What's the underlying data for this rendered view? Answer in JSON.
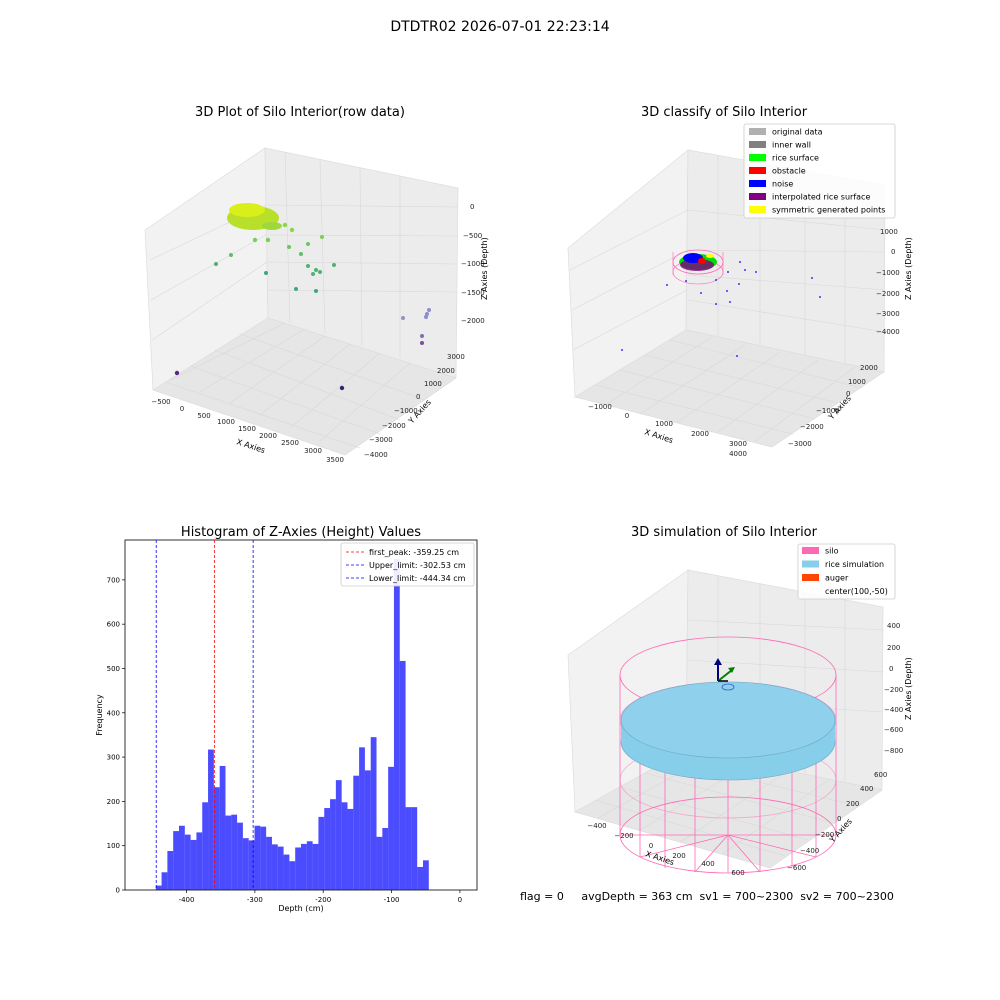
{
  "figure": {
    "suptitle": "DTDTR02 2026-07-01 22:23:14",
    "status_line": "flag = 0     avgDepth = 363 cm  sv1 = 700~2300  sv2 = 700~2300"
  },
  "panels": {
    "raw": {
      "title": "3D Plot of Silo Interior(row data)",
      "xlabel": "X Axies",
      "ylabel": "Y Axies",
      "zlabel": "Z Axies (Depth)",
      "xticks": [
        "−500",
        "0",
        "500",
        "1000",
        "1500",
        "2000",
        "2500",
        "3000",
        "3500"
      ],
      "yticks": [
        "−4000",
        "−3000",
        "−2000",
        "−1000",
        "0",
        "1000",
        "2000",
        "3000"
      ],
      "zticks": [
        "0",
        "−500",
        "−1000",
        "−1500",
        "−2000"
      ]
    },
    "classify": {
      "title": "3D classify of Silo Interior",
      "xlabel": "X Axies",
      "ylabel": "Y Axies",
      "zlabel": "Z Axies (Depth)",
      "xticks": [
        "−1000",
        "0",
        "1000",
        "2000",
        "3000",
        "4000"
      ],
      "yticks": [
        "−3000",
        "−2000",
        "−1000",
        "0",
        "1000",
        "2000"
      ],
      "zticks": [
        "1000",
        "0",
        "−1000",
        "−2000",
        "−3000",
        "−4000"
      ],
      "legend": [
        {
          "label": "original data",
          "color": "#b0b0b0"
        },
        {
          "label": "inner wall",
          "color": "#808080"
        },
        {
          "label": "rice surface",
          "color": "#00ff00"
        },
        {
          "label": "obstacle",
          "color": "#ff0000"
        },
        {
          "label": "noise",
          "color": "#0000ff"
        },
        {
          "label": "interpolated rice surface",
          "color": "#800080"
        },
        {
          "label": "symmetric generated points",
          "color": "#ffff00"
        }
      ]
    },
    "simulation": {
      "title": "3D simulation of Silo Interior",
      "xlabel": "X Axies",
      "ylabel": "Y Axies",
      "zlabel": "Z Axies (Depth)",
      "xticks": [
        "−400",
        "−200",
        "0",
        "200",
        "400",
        "600"
      ],
      "yticks": [
        "−600",
        "−400",
        "−200",
        "0",
        "200",
        "400",
        "600"
      ],
      "zticks": [
        "400",
        "200",
        "0",
        "−200",
        "−400",
        "−600",
        "−800"
      ],
      "legend": [
        {
          "label": "silo",
          "color": "#ff69b4"
        },
        {
          "label": "rice simulation",
          "color": "#87ceeb"
        },
        {
          "label": "auger",
          "color": "#ff4500"
        },
        {
          "label": "center(100,-50)",
          "color": "none"
        }
      ]
    }
  },
  "chart_data": {
    "type": "bar",
    "title": "Histogram of Z-Axies (Height) Values",
    "xlabel": "Depth (cm)",
    "ylabel": "Frequency",
    "xlim": [
      -490,
      25
    ],
    "ylim": [
      0,
      790
    ],
    "xticks": [
      -400,
      -300,
      -200,
      -100,
      0
    ],
    "yticks": [
      0,
      100,
      200,
      300,
      400,
      500,
      600,
      700
    ],
    "bin_start": -445,
    "bin_width": 8.5,
    "bar_color": "#0000ff",
    "values": [
      10,
      40,
      88,
      133,
      145,
      125,
      113,
      130,
      198,
      317,
      232,
      280,
      168,
      170,
      152,
      117,
      112,
      145,
      143,
      120,
      103,
      98,
      80,
      65,
      96,
      104,
      110,
      104,
      165,
      185,
      205,
      248,
      198,
      183,
      258,
      322,
      270,
      345,
      120,
      140,
      278,
      747,
      517,
      187,
      187,
      52,
      67
    ],
    "vlines": [
      {
        "x": -359.25,
        "color": "#ff0000",
        "label": "first_peak: -359.25 cm"
      },
      {
        "x": -302.53,
        "color": "#0000ff",
        "label": "Upper_limit: -302.53 cm"
      },
      {
        "x": -444.34,
        "color": "#0000ff",
        "label": "Lower_limit: -444.34 cm"
      }
    ],
    "legend_position": "top-right"
  }
}
